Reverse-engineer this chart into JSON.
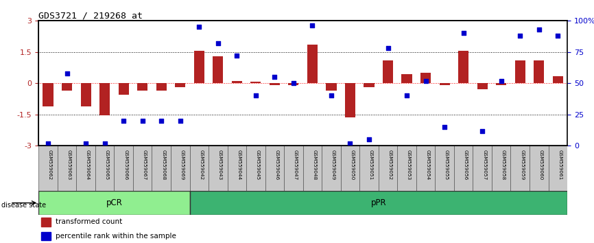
{
  "title": "GDS3721 / 219268_at",
  "samples": [
    "GSM559062",
    "GSM559063",
    "GSM559064",
    "GSM559065",
    "GSM559066",
    "GSM559067",
    "GSM559068",
    "GSM559069",
    "GSM559042",
    "GSM559043",
    "GSM559044",
    "GSM559045",
    "GSM559046",
    "GSM559047",
    "GSM559048",
    "GSM559049",
    "GSM559050",
    "GSM559051",
    "GSM559052",
    "GSM559053",
    "GSM559054",
    "GSM559055",
    "GSM559056",
    "GSM559057",
    "GSM559058",
    "GSM559059",
    "GSM559060",
    "GSM559061"
  ],
  "bar_values": [
    -1.1,
    -0.35,
    -1.1,
    -1.55,
    -0.55,
    -0.35,
    -0.35,
    -0.2,
    1.55,
    1.3,
    0.12,
    0.08,
    -0.1,
    -0.08,
    1.85,
    -0.35,
    -1.65,
    -0.2,
    1.1,
    0.45,
    0.5,
    -0.08,
    1.55,
    -0.3,
    -0.08,
    1.1,
    1.1,
    0.35
  ],
  "percentile_values": [
    2,
    58,
    2,
    2,
    20,
    20,
    20,
    20,
    95,
    82,
    72,
    40,
    55,
    50,
    96,
    40,
    2,
    5,
    78,
    40,
    52,
    15,
    90,
    12,
    52,
    88,
    93,
    88
  ],
  "pCR_count": 8,
  "pPR_count": 20,
  "bar_color": "#B22222",
  "dot_color": "#0000CC",
  "background_color": "#ffffff",
  "ylim_left": [
    -3.0,
    3.0
  ],
  "ylim_right": [
    0,
    100
  ],
  "yticks_left": [
    -3,
    -1.5,
    0,
    1.5,
    3
  ],
  "yticks_right": [
    0,
    25,
    50,
    75,
    100
  ],
  "yticklabels_left": [
    "-3",
    "-1.5",
    "0",
    "1.5",
    "3"
  ],
  "yticklabels_right": [
    "0",
    "25",
    "50",
    "75",
    "100%"
  ],
  "hline_dotted_vals": [
    -1.5,
    1.5
  ],
  "hline_red_val": 0,
  "legend_bar_label": "transformed count",
  "legend_dot_label": "percentile rank within the sample",
  "pCR_color": "#90EE90",
  "pPR_color": "#3CB371",
  "disease_state_label": "disease state",
  "pCR_label": "pCR",
  "pPR_label": "pPR",
  "bar_width": 0.55
}
